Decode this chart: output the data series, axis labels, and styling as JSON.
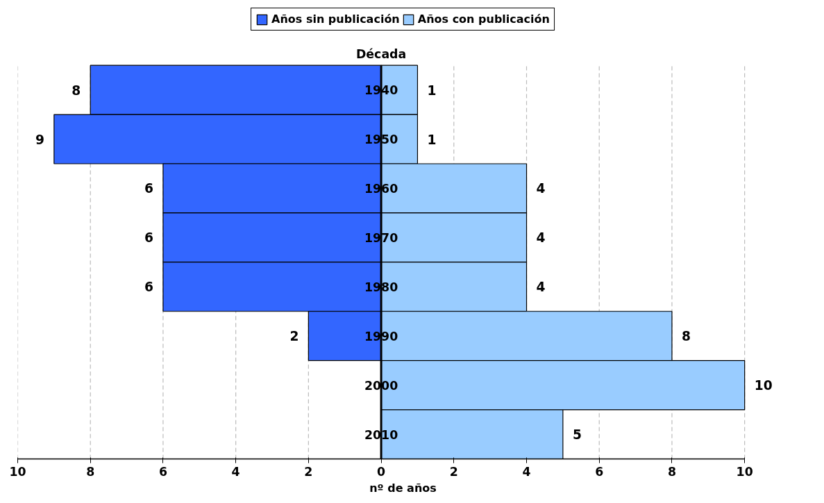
{
  "chart_data": {
    "type": "bar",
    "orientation": "horizontal",
    "xlabel": "nº de años",
    "ylabel": "Década",
    "categories": [
      "1940",
      "1950",
      "1960",
      "1970",
      "1980",
      "1990",
      "2000",
      "2010"
    ],
    "series": [
      {
        "name": "Años sin publicación",
        "color": "#3366ff",
        "base": [
          -8,
          -9,
          -6,
          -6,
          -6,
          -2,
          null,
          null
        ],
        "values": [
          8,
          9,
          6,
          6,
          6,
          2,
          null,
          null
        ]
      },
      {
        "name": "Años con publicación",
        "color": "#99ccff",
        "values": [
          1,
          1,
          4,
          4,
          4,
          8,
          10,
          5
        ]
      }
    ],
    "xlim": [
      -10,
      10
    ],
    "xticks": [
      {
        "value": -10,
        "label": "10"
      },
      {
        "value": -8,
        "label": "8"
      },
      {
        "value": -6,
        "label": "6"
      },
      {
        "value": -4,
        "label": "4"
      },
      {
        "value": -2,
        "label": "2"
      },
      0,
      2,
      4,
      6,
      8,
      10
    ],
    "grid": "x",
    "legend": "top",
    "data_labels": true
  }
}
